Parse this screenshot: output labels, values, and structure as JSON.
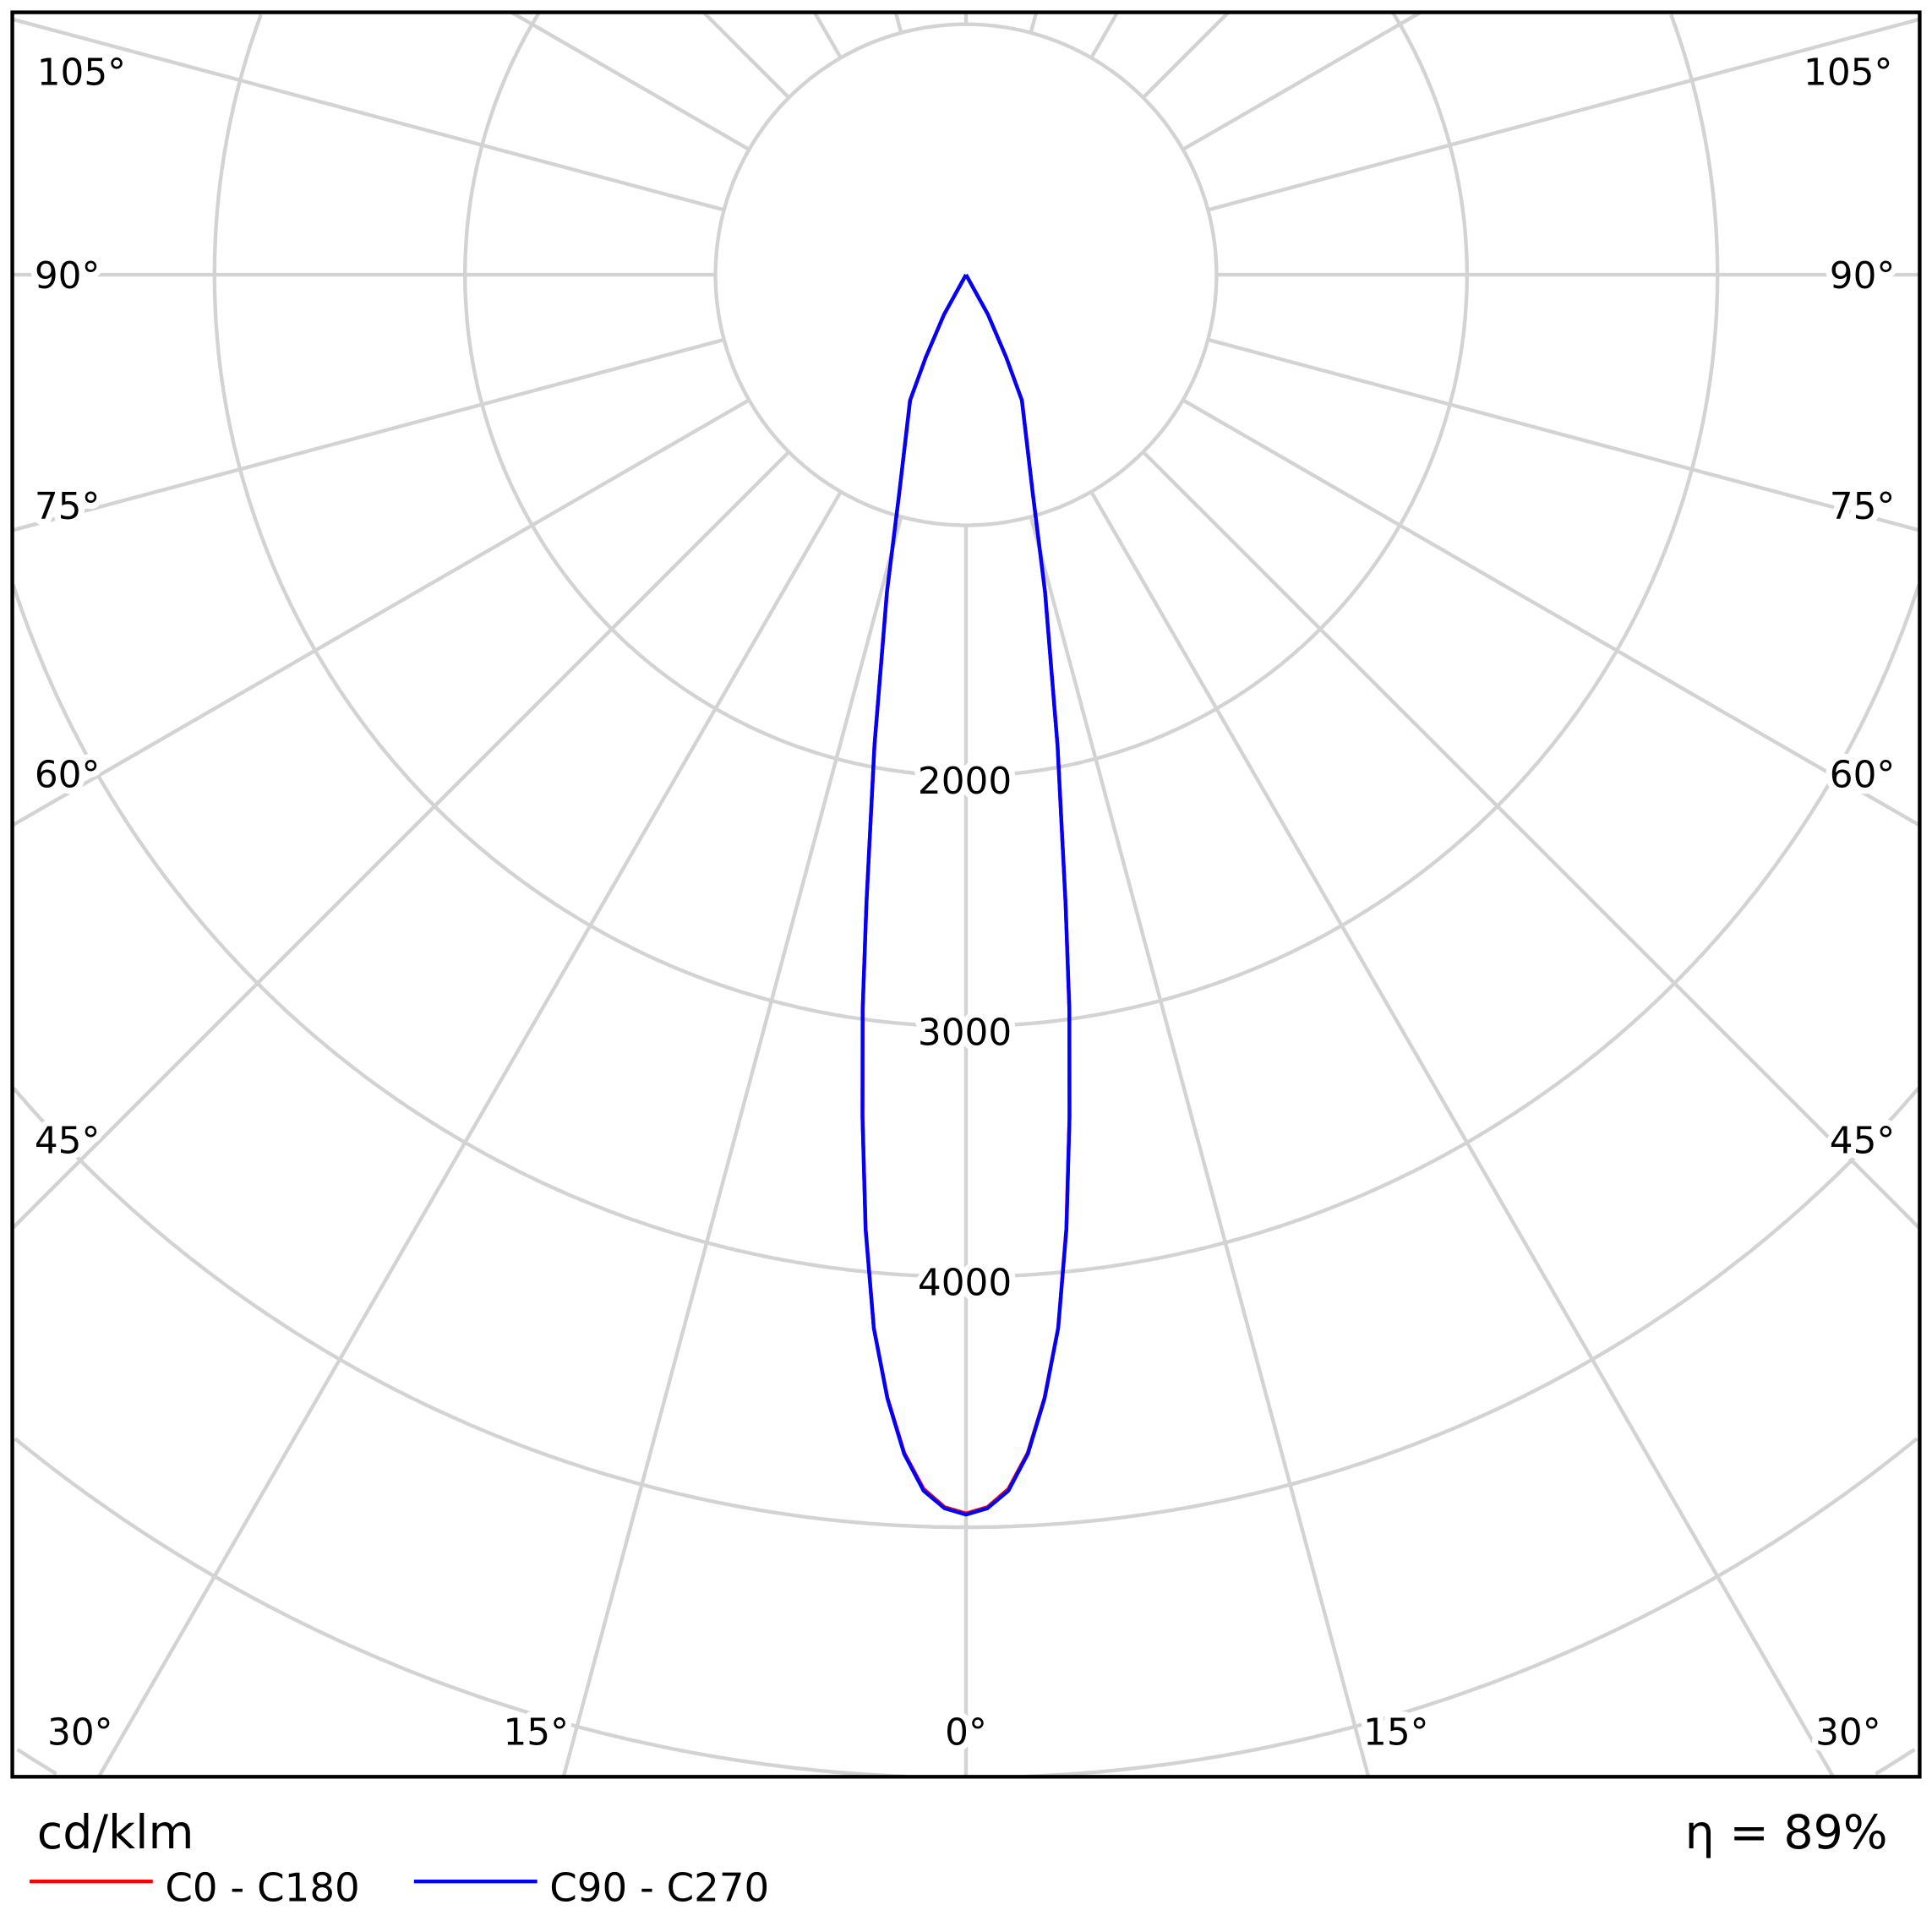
{
  "chart_data": {
    "type": "polar-line",
    "title": "",
    "unit_label": "cd/klm",
    "efficiency_label": "η = 89%",
    "radial_ticks": [
      2000,
      3000,
      4000
    ],
    "radial_grid": [
      1000,
      2000,
      3000,
      4000,
      5000,
      6000,
      7000,
      8000
    ],
    "angle_tick_labels": {
      "left": [
        "105°",
        "90°",
        "75°",
        "60°",
        "45°"
      ],
      "right": [
        "105°",
        "90°",
        "75°",
        "60°",
        "45°"
      ],
      "bottom": [
        "30°",
        "15°",
        "0°",
        "15°",
        "30°"
      ]
    },
    "grid": true,
    "legend_position": "bottom-left",
    "series": [
      {
        "name": "C0 - C180",
        "color": "#ff0000",
        "angles": [
          0,
          1,
          2,
          3,
          4,
          5,
          6,
          7,
          8,
          9,
          11,
          14,
          17,
          24,
          26,
          29,
          90
        ],
        "values": [
          4945,
          4920,
          4850,
          4710,
          4495,
          4220,
          3830,
          3390,
          2965,
          2540,
          1915,
          1305,
          910,
          550,
          365,
          180,
          0
        ]
      },
      {
        "name": "C90 - C270",
        "color": "#0000ff",
        "angles": [
          0,
          1,
          2,
          3,
          4,
          5,
          6,
          7,
          8,
          9,
          11,
          14,
          17,
          24,
          26,
          29,
          90
        ],
        "values": [
          4950,
          4925,
          4857,
          4714,
          4497,
          4222,
          3833,
          3389,
          2966,
          2540,
          1915,
          1304,
          912,
          548,
          367,
          180,
          0
        ]
      }
    ]
  }
}
